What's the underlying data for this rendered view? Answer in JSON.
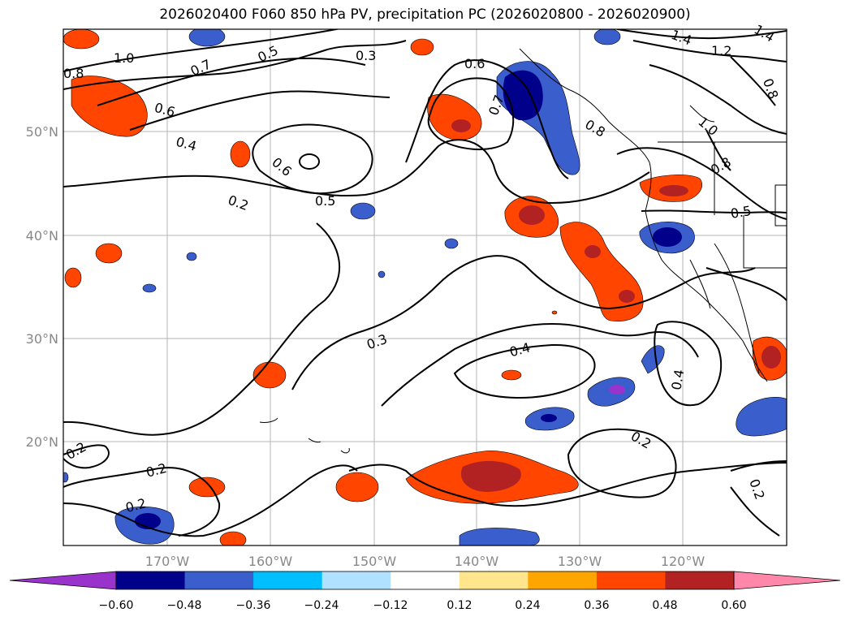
{
  "title": "2026020400 F060 850 hPa PV, precipitation PC (2026020800 - 2026020900)",
  "map": {
    "lon_ticks": [
      "170°W",
      "160°W",
      "150°W",
      "140°W",
      "130°W",
      "120°W"
    ],
    "lat_ticks": [
      "50°N",
      "40°N",
      "30°N",
      "20°N"
    ],
    "contour_labels": [
      "1.0",
      "0.7",
      "0.5",
      "0.3",
      "0.6",
      "0.7",
      "1.4",
      "1.2",
      "1.4",
      "0.8",
      "0.8",
      "0.6",
      "0.4",
      "0.6",
      "0.5",
      "0.2",
      "0.8",
      "1.0",
      "0.5",
      "0.8",
      "0.3",
      "0.4",
      "0.4",
      "0.2",
      "0.2",
      "0.2",
      "0.2",
      "0.2"
    ]
  },
  "colorbar": {
    "ticks": [
      "−0.60",
      "−0.48",
      "−0.36",
      "−0.24",
      "−0.12",
      "0.12",
      "0.24",
      "0.36",
      "0.48",
      "0.60"
    ],
    "colors": [
      "#9933cc",
      "#00008b",
      "#3a5fcd",
      "#00bfff",
      "#b0e2ff",
      "#ffffff",
      "#ffe68c",
      "#ffa500",
      "#ff4500",
      "#b22222",
      "#ff88aa"
    ]
  }
}
